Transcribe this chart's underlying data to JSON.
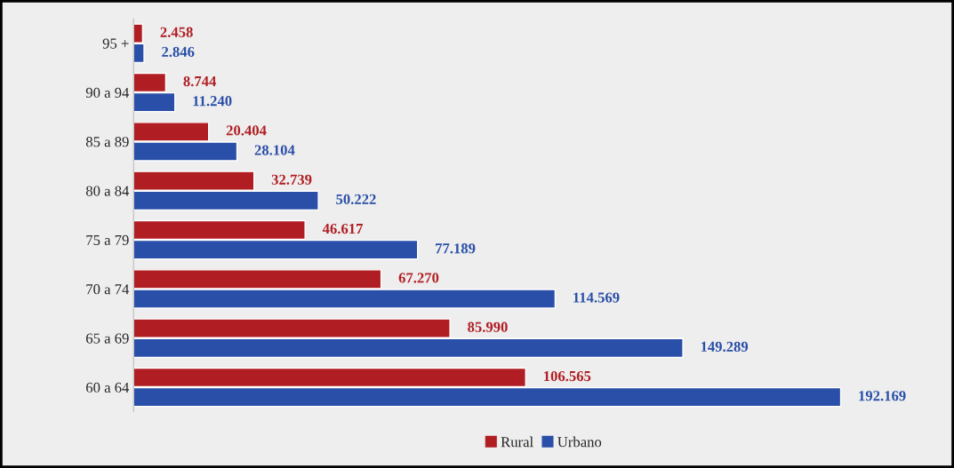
{
  "chart_data": {
    "type": "bar",
    "orientation": "horizontal",
    "categories": [
      "95 +",
      "90 a 94",
      "85 a 89",
      "80 a 84",
      "75 a 79",
      "70 a 74",
      "65 a 69",
      "60 a 64"
    ],
    "series": [
      {
        "name": "Rural",
        "color": "#b01e23",
        "values": [
          2458,
          8744,
          20404,
          32739,
          46617,
          67270,
          85990,
          106565
        ],
        "value_labels": [
          "2.458",
          "8.744",
          "20.404",
          "32.739",
          "46.617",
          "67.270",
          "85.990",
          "106.565"
        ]
      },
      {
        "name": "Urbano",
        "color": "#2a4fa8",
        "values": [
          2846,
          11240,
          28104,
          50222,
          77189,
          114569,
          149289,
          192169
        ],
        "value_labels": [
          "2.846",
          "11.240",
          "28.104",
          "50.222",
          "77.189",
          "114.569",
          "149.289",
          "192.169"
        ]
      }
    ],
    "tick_labels": "y",
    "grid": false,
    "legend": "bottom"
  }
}
